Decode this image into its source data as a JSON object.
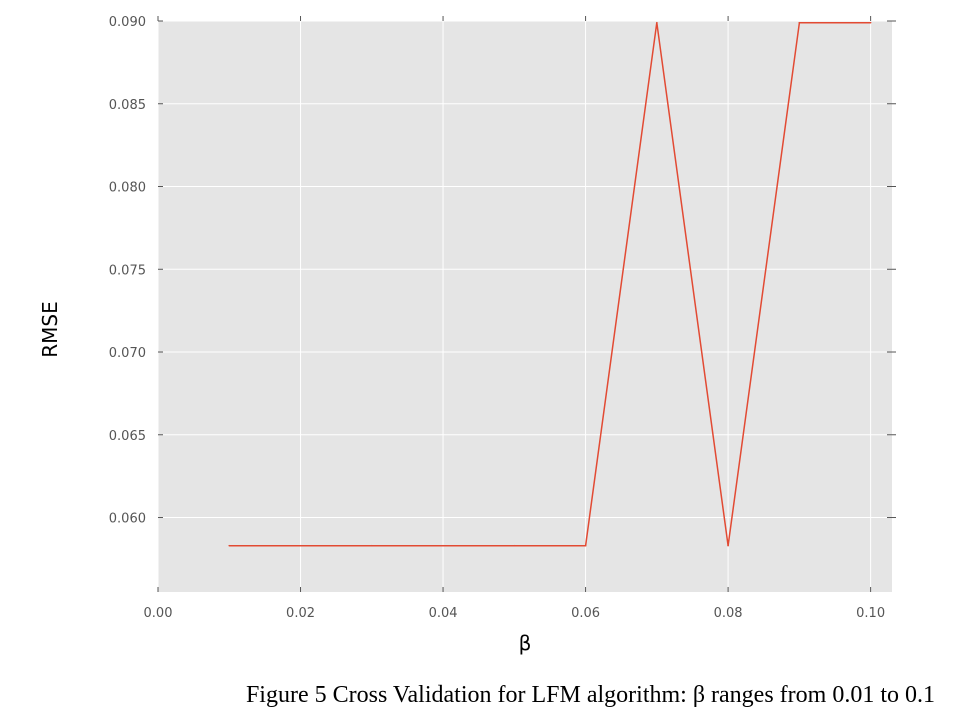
{
  "chart_data": {
    "type": "line",
    "caption": "Figure 5 Cross Validation for LFM algorithm: β ranges from 0.01 to 0.1",
    "xlabel": "β",
    "ylabel": "RMSE",
    "xlim": [
      0.0,
      0.103
    ],
    "ylim": [
      0.0555,
      0.09
    ],
    "x_ticks": [
      "0.00",
      "0.02",
      "0.04",
      "0.06",
      "0.08",
      "0.10"
    ],
    "y_ticks": [
      "0.060",
      "0.065",
      "0.070",
      "0.075",
      "0.080",
      "0.085",
      "0.090"
    ],
    "grid": true,
    "background": "#e5e5e5",
    "line_color": "#e24a33",
    "series": [
      {
        "x": [
          0.01,
          0.02,
          0.03,
          0.04,
          0.05,
          0.06,
          0.07,
          0.08,
          0.09,
          0.1
        ],
        "values": [
          0.0583,
          0.0583,
          0.0583,
          0.0583,
          0.0583,
          0.0583,
          0.0899,
          0.0583,
          0.0899,
          0.0899
        ]
      }
    ]
  }
}
